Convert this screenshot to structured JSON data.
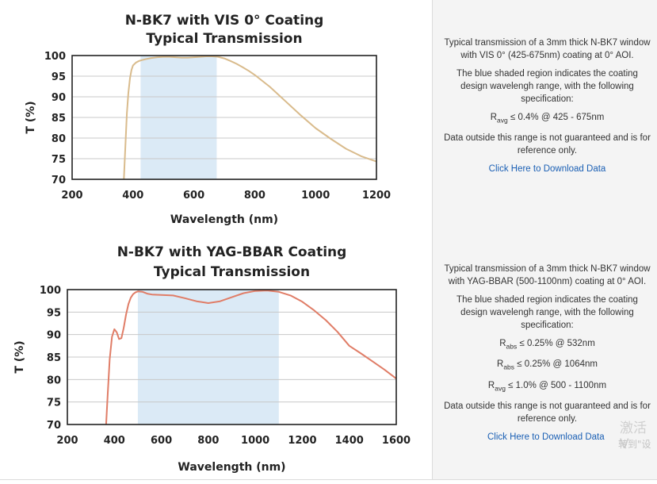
{
  "chart_data": [
    {
      "type": "line",
      "title": [
        "N-BK7 with VIS 0° Coating",
        "Typical Transmission"
      ],
      "xlabel": "Wavelength (nm)",
      "ylabel": "T (%)",
      "xlim": [
        200,
        1200
      ],
      "ylim": [
        70,
        100
      ],
      "x_ticks": [
        200,
        400,
        600,
        800,
        1000,
        1200
      ],
      "y_ticks": [
        70,
        75,
        80,
        85,
        90,
        95,
        100
      ],
      "grid": true,
      "shaded_range": [
        425,
        675
      ],
      "shaded_color": "#dbeaf6",
      "series": [
        {
          "color": "#d9bb8c",
          "x": [
            370,
            375,
            380,
            385,
            390,
            395,
            400,
            410,
            420,
            430,
            440,
            460,
            480,
            500,
            520,
            540,
            560,
            580,
            600,
            620,
            640,
            660,
            680,
            700,
            720,
            740,
            760,
            780,
            800,
            850,
            900,
            950,
            1000,
            1050,
            1100,
            1150,
            1200
          ],
          "y": [
            70,
            78,
            86,
            91,
            94.5,
            96.5,
            97.6,
            98.3,
            98.7,
            98.9,
            99.1,
            99.4,
            99.6,
            99.7,
            99.7,
            99.6,
            99.5,
            99.5,
            99.6,
            99.7,
            99.8,
            99.8,
            99.7,
            99.3,
            98.7,
            98.0,
            97.2,
            96.3,
            95.3,
            92.4,
            89.0,
            85.6,
            82.4,
            79.8,
            77.4,
            75.6,
            74.3
          ]
        }
      ]
    },
    {
      "type": "line",
      "title": [
        "N-BK7 with YAG-BBAR Coating",
        "Typical Transmission"
      ],
      "xlabel": "Wavelength (nm)",
      "ylabel": "T (%)",
      "xlim": [
        200,
        1600
      ],
      "ylim": [
        70,
        100
      ],
      "x_ticks": [
        200,
        400,
        600,
        800,
        1000,
        1200,
        1400,
        1600
      ],
      "y_ticks": [
        70,
        75,
        80,
        85,
        90,
        95,
        100
      ],
      "grid": true,
      "shaded_range": [
        500,
        1100
      ],
      "shaded_color": "#dbeaf6",
      "series": [
        {
          "color": "#e07d67",
          "x": [
            365,
            372,
            380,
            390,
            400,
            410,
            420,
            430,
            440,
            450,
            460,
            470,
            480,
            490,
            500,
            520,
            540,
            560,
            600,
            650,
            700,
            750,
            800,
            850,
            900,
            950,
            1000,
            1050,
            1100,
            1150,
            1200,
            1250,
            1300,
            1350,
            1400,
            1450,
            1500,
            1550,
            1600
          ],
          "y": [
            70,
            77,
            84.5,
            89.5,
            91.2,
            90.5,
            89.0,
            89.2,
            91.5,
            94.5,
            96.8,
            98.2,
            99.0,
            99.4,
            99.6,
            99.5,
            99.1,
            98.9,
            98.8,
            98.7,
            98.1,
            97.4,
            97.0,
            97.4,
            98.3,
            99.2,
            99.7,
            99.8,
            99.5,
            98.7,
            97.3,
            95.4,
            93.2,
            90.6,
            87.5,
            85.8,
            84.0,
            82.2,
            80.2
          ]
        }
      ]
    }
  ],
  "panels": [
    {
      "description": "Typical transmission of a 3mm thick N-BK7 window with VIS 0° (425-675nm) coating at 0° AOI.",
      "shaded_note": "The blue shaded region indicates the coating design wavelengh range, with the following specification:",
      "specs": [
        {
          "sym": "R",
          "sub": "avg",
          "text": "≤ 0.4% @ 425 - 675nm"
        }
      ],
      "disclaimer": "Data outside this range is not guaranteed and is for reference only.",
      "link": "Click Here to Download Data"
    },
    {
      "description": "Typical transmission of a 3mm thick N-BK7 window with YAG-BBAR (500-1100nm) coating at 0° AOI.",
      "shaded_note": "The blue shaded region indicates the coating design wavelengh range, with the following specification:",
      "specs": [
        {
          "sym": "R",
          "sub": "abs",
          "text": "≤ 0.25% @ 532nm"
        },
        {
          "sym": "R",
          "sub": "abs",
          "text": "≤ 0.25% @ 1064nm"
        },
        {
          "sym": "R",
          "sub": "avg",
          "text": "≤ 1.0% @ 500 - 1100nm"
        }
      ],
      "disclaimer": "Data outside this range is not guaranteed and is for reference only.",
      "link": "Click Here to Download Data"
    }
  ],
  "watermark": {
    "line1": "激活 V",
    "line2": "转到\"设"
  }
}
